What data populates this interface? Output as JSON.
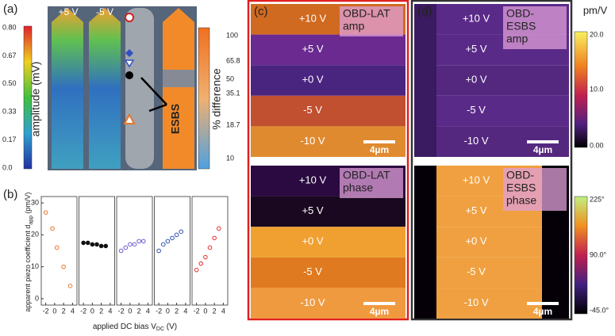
{
  "figure": {
    "panel_a": {
      "label": "(a)",
      "strip_labels": [
        "+5 V",
        "-5 V"
      ],
      "left_colorbar": {
        "title": "amplitude (mV)",
        "ticks": [
          "0.80",
          "0.67",
          "0.50",
          "0.33",
          "0.17",
          "0.0"
        ]
      },
      "right_colorbar": {
        "title": "% difference",
        "ticks": [
          "100",
          "65.8",
          "50",
          "35.1",
          "18.7",
          "10"
        ]
      },
      "arrow_label": "ESBS"
    },
    "panel_b": {
      "label": "(b)",
      "ylabel": "apparent piezo coefficient d",
      "ylabel_sub": "app",
      "ylabel_unit": " (pm/V)",
      "xlabel": "applied DC bias V",
      "xlabel_sub": "DC",
      "xlabel_unit": " (V)"
    },
    "panel_c": {
      "label": "(c)",
      "bias_labels": [
        "+10 V",
        "+5 V",
        "+0 V",
        "-5 V",
        "-10 V"
      ],
      "amp_title": [
        "OBD-LAT",
        "amp"
      ],
      "phase_title": [
        "OBD-LAT",
        "phase"
      ],
      "scale_bar": "4µm"
    },
    "panel_d": {
      "label": "(d)",
      "bias_labels": [
        "+10 V",
        "+5 V",
        "+0 V",
        "-5 V",
        "-10 V"
      ],
      "amp_title": [
        "OBD-",
        "ESBS",
        "amp"
      ],
      "phase_title": [
        "OBD-",
        "ESBS",
        "phase"
      ],
      "scale_bar": "4µm"
    },
    "colorbars": {
      "amp": {
        "unit": "pm/V",
        "ticks": [
          "20.0",
          "10.0",
          "0.00"
        ]
      },
      "phase": {
        "ticks": [
          "225°",
          "90.0°",
          "-45.0°"
        ]
      }
    }
  },
  "chart_data": [
    {
      "type": "scatter",
      "color": "#e8762b",
      "x": [
        -2,
        -0.5,
        0.5,
        2,
        3.5
      ],
      "values": [
        27,
        22,
        16,
        10,
        4
      ],
      "xlim": [
        -3,
        5
      ],
      "ylim": [
        -2,
        32
      ],
      "xticks": [
        -2,
        0,
        2,
        4
      ],
      "yticks": [
        0,
        10,
        20,
        30
      ]
    },
    {
      "type": "scatter",
      "color": "#111111",
      "x": [
        -2,
        -1,
        0,
        1,
        2,
        3
      ],
      "values": [
        17.5,
        17.5,
        17,
        17,
        16.5,
        16.5
      ],
      "xlim": [
        -3,
        5
      ],
      "ylim": [
        -2,
        32
      ],
      "xticks": [
        -2,
        0,
        2,
        4
      ]
    },
    {
      "type": "scatter",
      "color": "#6a5acd",
      "x": [
        -2,
        -1,
        0,
        1,
        2,
        3
      ],
      "values": [
        15,
        16,
        17,
        17,
        18,
        18
      ],
      "xlim": [
        -3,
        5
      ],
      "ylim": [
        -2,
        32
      ],
      "xticks": [
        -2,
        0,
        2,
        4
      ]
    },
    {
      "type": "scatter",
      "color": "#3050b0",
      "x": [
        -2,
        -1,
        0,
        1,
        2,
        3
      ],
      "values": [
        15,
        17,
        18,
        19,
        20,
        21
      ],
      "xlim": [
        -3,
        5
      ],
      "ylim": [
        -2,
        32
      ],
      "xticks": [
        -2,
        0,
        2,
        4
      ]
    },
    {
      "type": "scatter",
      "color": "#e03030",
      "x": [
        -2,
        -1,
        0,
        1,
        2,
        3
      ],
      "values": [
        9,
        11,
        13,
        16,
        19,
        22
      ],
      "xlim": [
        -3,
        5
      ],
      "ylim": [
        -2,
        32
      ],
      "xticks": [
        -2,
        0,
        2,
        4
      ]
    }
  ]
}
